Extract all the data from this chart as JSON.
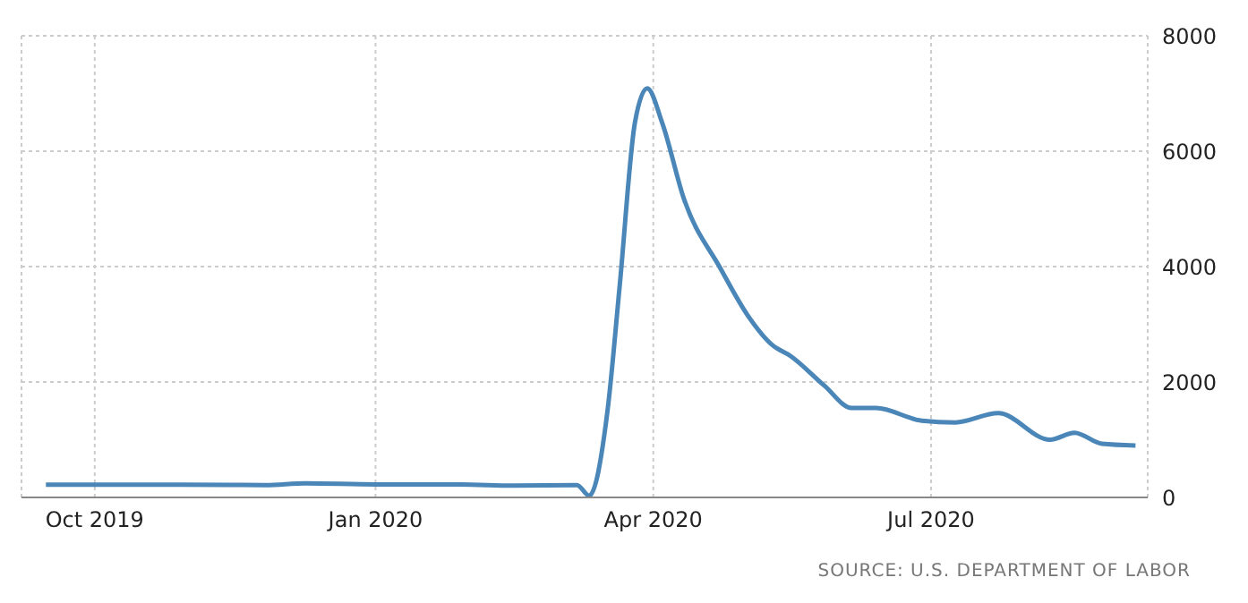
{
  "chart_data": {
    "type": "line",
    "x": [
      "2019-09-15",
      "2019-10-01",
      "2019-10-29",
      "2019-11-26",
      "2019-12-09",
      "2020-01-01",
      "2020-01-29",
      "2020-02-15",
      "2020-03-07",
      "2020-03-11",
      "2020-03-17",
      "2020-03-21",
      "2020-03-26",
      "2020-03-30",
      "2020-04-04",
      "2020-04-11",
      "2020-04-23",
      "2020-05-02",
      "2020-05-10",
      "2020-05-16",
      "2020-05-27",
      "2020-06-05",
      "2020-06-13",
      "2020-06-28",
      "2020-07-09",
      "2020-07-23",
      "2020-08-09",
      "2020-08-17",
      "2020-08-26",
      "2020-09-06"
    ],
    "series": [
      {
        "color": "#4a86b8",
        "values": [
          220,
          220,
          220,
          215,
          245,
          225,
          225,
          205,
          215,
          30,
          1500,
          3670,
          6500,
          7090,
          6480,
          5180,
          3970,
          3150,
          2640,
          2450,
          1940,
          1550,
          1550,
          1330,
          1300,
          1460,
          1000,
          1120,
          930,
          900
        ]
      }
    ],
    "xlim": [
      "2019-09-07",
      "2020-09-10"
    ],
    "xticks": [
      {
        "value": "2019-10-01",
        "label": "Oct 2019"
      },
      {
        "value": "2020-01-01",
        "label": "Jan 2020"
      },
      {
        "value": "2020-04-01",
        "label": "Apr 2020"
      },
      {
        "value": "2020-07-01",
        "label": "Jul 2020"
      }
    ],
    "ylim": [
      0,
      8000
    ],
    "yticks": [
      0,
      2000,
      4000,
      6000,
      8000
    ],
    "grid": true,
    "legend": false,
    "marker": "none",
    "line_style": "solid",
    "annotations": [
      "SOURCE: U.S. DEPARTMENT OF LABOR"
    ]
  }
}
